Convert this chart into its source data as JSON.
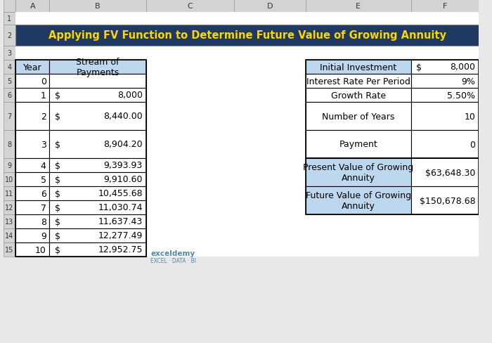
{
  "title": "Applying FV Function to Determine Future Value of Growing Annuity",
  "title_bg": "#1F3864",
  "title_color": "#FFD700",
  "header_bg": "#BDD7EE",
  "white_bg": "#FFFFFF",
  "grid_color": "#000000",
  "fig_bg": "#FFFFFF",
  "outer_bg": "#E8E8E8",
  "left_table": {
    "headers": [
      "Year",
      "Stream of\nPayments"
    ],
    "rows": [
      [
        "0",
        "",
        ""
      ],
      [
        "1",
        "$",
        "8,000"
      ],
      [
        "2",
        "$",
        "8,440.00"
      ],
      [
        "3",
        "$",
        "8,904.20"
      ],
      [
        "4",
        "$",
        "9,393.93"
      ],
      [
        "5",
        "$",
        "9,910.60"
      ],
      [
        "6",
        "$",
        "10,455.68"
      ],
      [
        "7",
        "$",
        "11,030.74"
      ],
      [
        "8",
        "$",
        "11,637.43"
      ],
      [
        "9",
        "$",
        "12,277.49"
      ],
      [
        "10",
        "$",
        "12,952.75"
      ]
    ]
  },
  "right_table_top": {
    "rows": [
      [
        "Initial Investment",
        "$",
        "8,000"
      ],
      [
        "Interest Rate Per Period",
        "",
        "9%"
      ],
      [
        "Growth Rate",
        "",
        "5.50%"
      ],
      [
        "Number of Years",
        "",
        "10"
      ],
      [
        "Payment",
        "",
        "0"
      ]
    ]
  },
  "right_table_bottom": {
    "rows": [
      [
        "Present Value of Growing\nAnnuity",
        "$63,648.30"
      ],
      [
        "Future Value of Growing\nAnnuity",
        "$150,678.68"
      ]
    ]
  },
  "col_labels": [
    "A",
    "B",
    "C",
    "D",
    "E",
    "F"
  ],
  "row_labels": [
    "1",
    "2",
    "3",
    "4",
    "5",
    "6",
    "7",
    "8",
    "9",
    "10",
    "11",
    "12",
    "13",
    "14",
    "15"
  ],
  "excel_col_bg": "#D3D3D3",
  "excel_row_bg": "#D3D3D3"
}
